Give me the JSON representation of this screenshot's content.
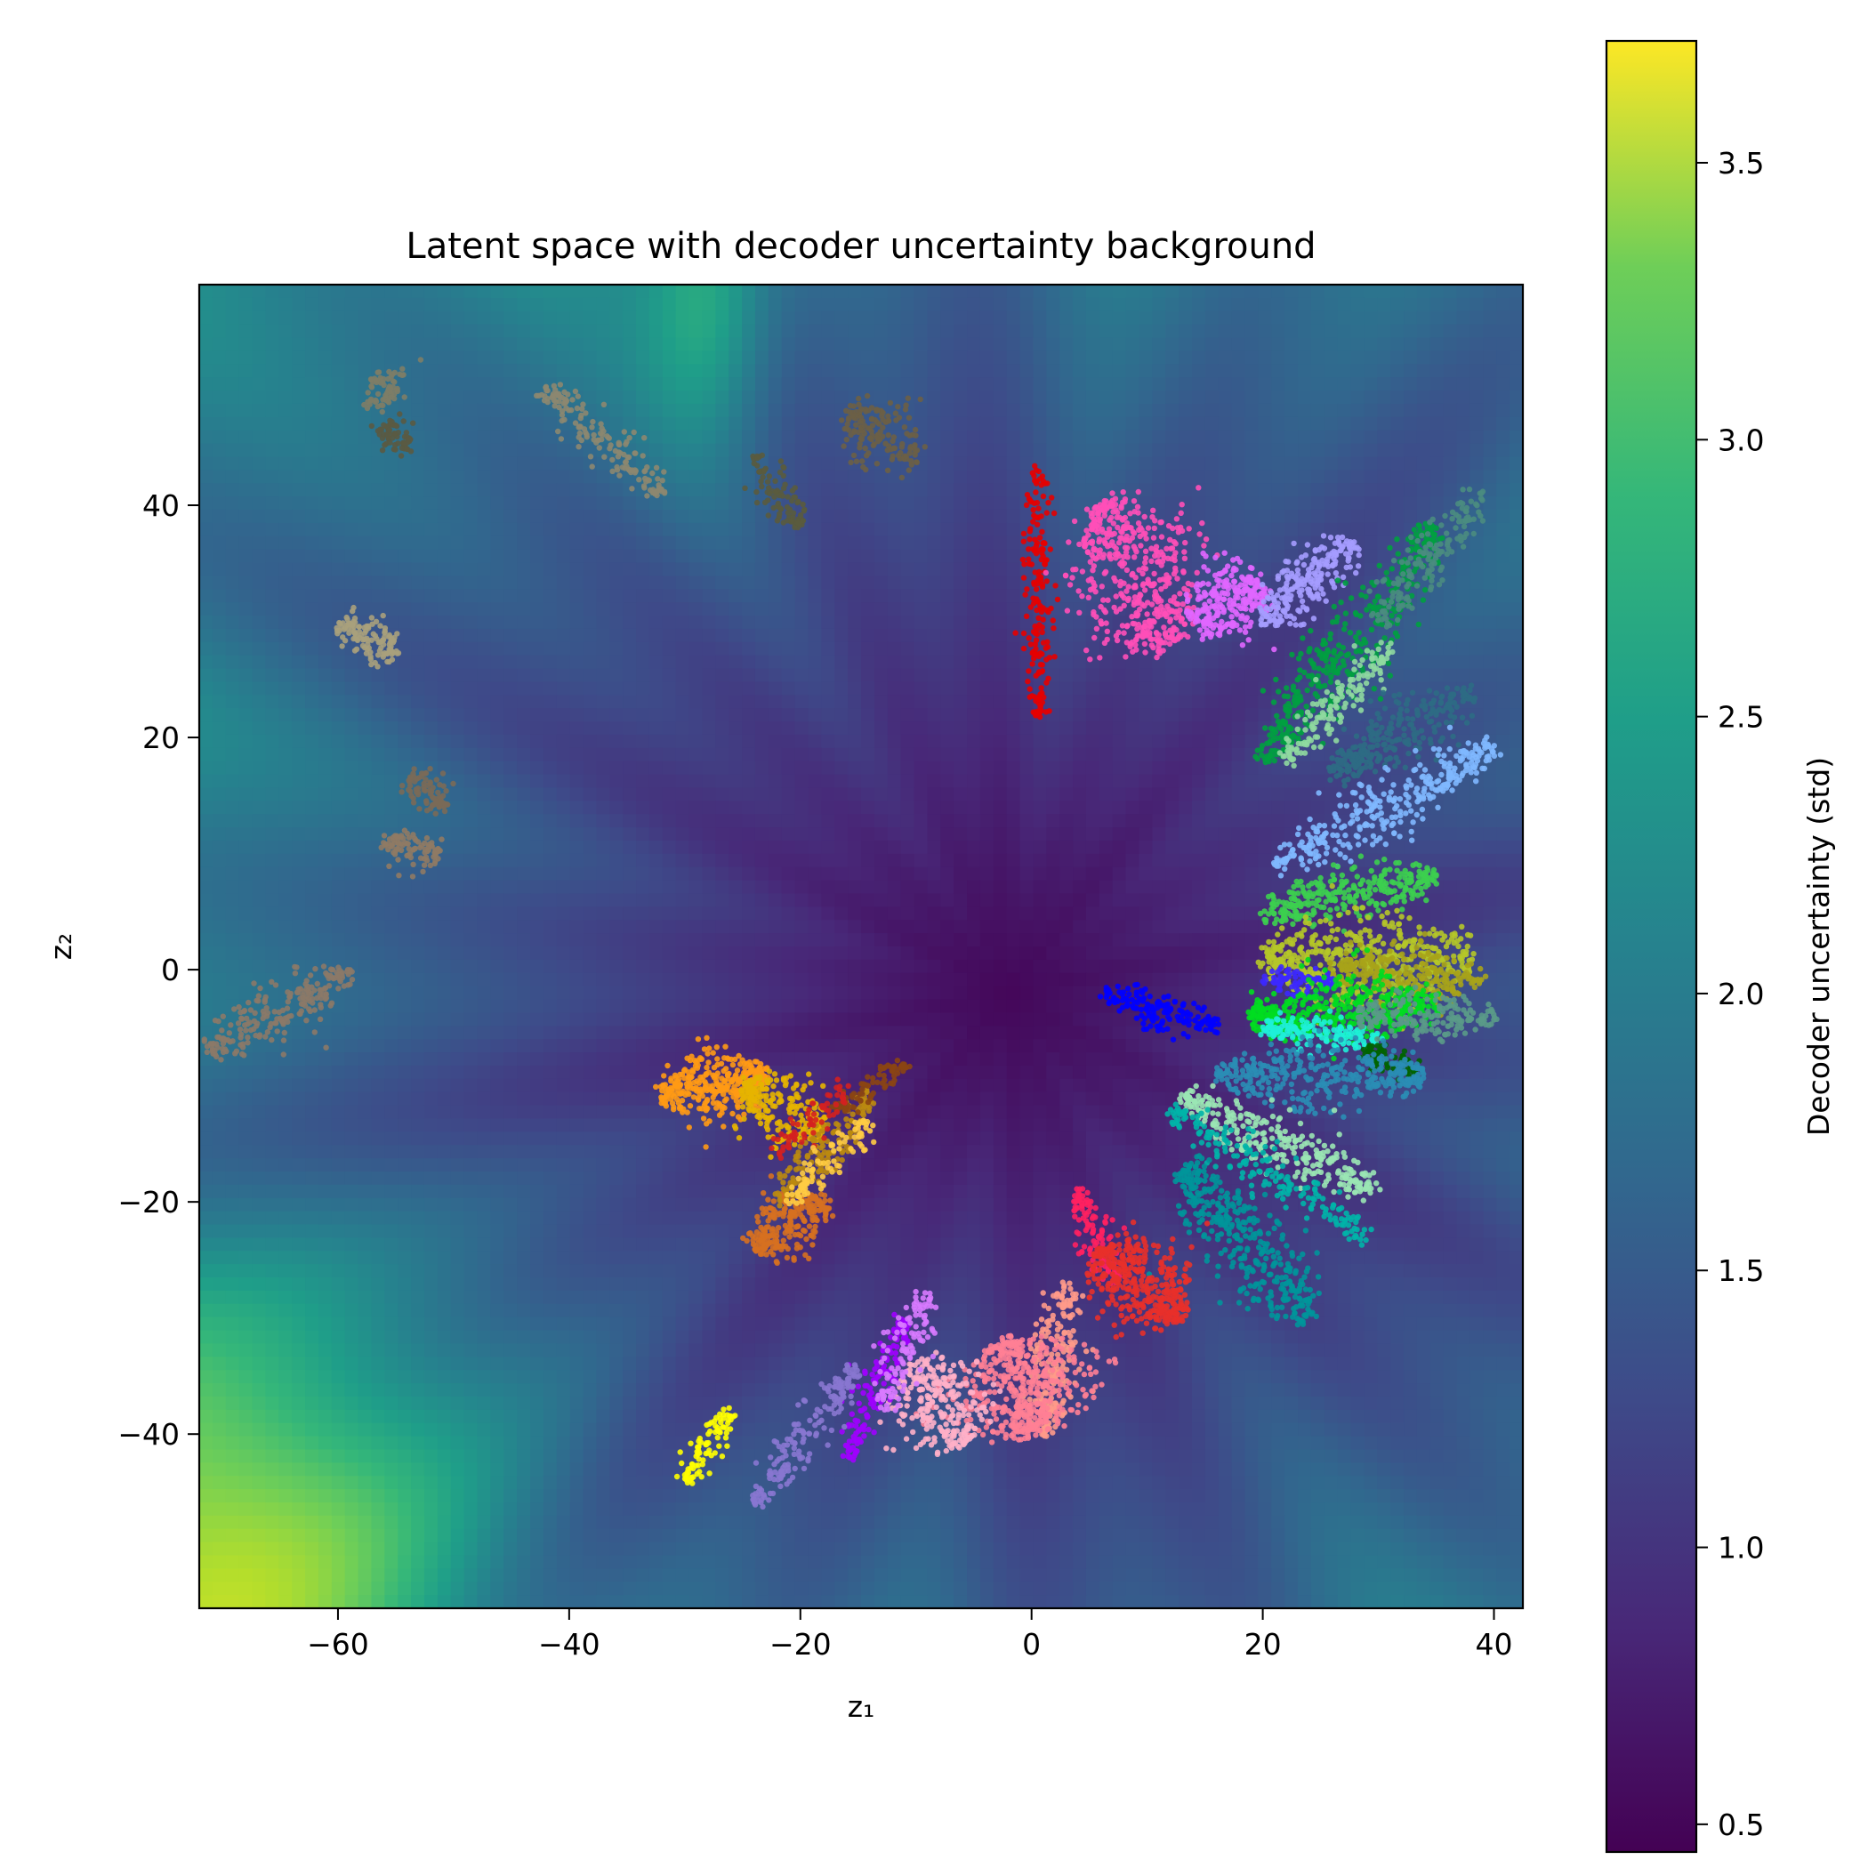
{
  "chart_data": {
    "type": "scatter",
    "title": "Latent space with decoder uncertainty background",
    "xlabel": "z₁",
    "ylabel": "z₂",
    "xlim": [
      -72,
      42.5
    ],
    "ylim": [
      -55,
      59
    ],
    "x_ticks": [
      -60,
      -40,
      -20,
      0,
      20,
      40
    ],
    "y_ticks": [
      -40,
      -20,
      0,
      20,
      40
    ],
    "x_tick_labels": [
      "−60",
      "−40",
      "−20",
      "0",
      "20",
      "40"
    ],
    "y_tick_labels": [
      "−40",
      "−20",
      "0",
      "20",
      "40"
    ],
    "grid": false,
    "legend": "none",
    "background": {
      "type": "heatmap",
      "colormap": "viridis",
      "description_of_pattern": "radial spokes of low uncertainty near origin, increasing outward",
      "center": [
        -2,
        -2
      ],
      "value_range": [
        0.45,
        3.72
      ]
    },
    "colorbar": {
      "label": "Decoder uncertainty (std)",
      "min": 0.45,
      "max": 3.72,
      "ticks": [
        0.5,
        1.0,
        1.5,
        2.0,
        2.5,
        3.0,
        3.5
      ],
      "tick_labels": [
        "0.5",
        "1.0",
        "1.5",
        "2.0",
        "2.5",
        "3.0",
        "3.5"
      ]
    },
    "clusters": [
      {
        "color": "#8b7968",
        "from": [
          -71,
          -7
        ],
        "to": [
          -59,
          0
        ],
        "width": 1.2,
        "n": 220
      },
      {
        "color": "#8f7a64",
        "from": [
          -56,
          11
        ],
        "to": [
          -51,
          10
        ],
        "width": 0.8,
        "n": 90
      },
      {
        "color": "#7a6a58",
        "from": [
          -54,
          17
        ],
        "to": [
          -51,
          14
        ],
        "width": 0.9,
        "n": 80
      },
      {
        "color": "#a9a07c",
        "from": [
          -60,
          30
        ],
        "to": [
          -55,
          27
        ],
        "width": 1.0,
        "n": 120
      },
      {
        "color": "#7d7d67",
        "from": [
          -57,
          51
        ],
        "to": [
          -55,
          49
        ],
        "width": 1.0,
        "n": 70
      },
      {
        "color": "#5a5a42",
        "from": [
          -56,
          47
        ],
        "to": [
          -54,
          45
        ],
        "width": 0.8,
        "n": 60
      },
      {
        "color": "#8c8770",
        "from": [
          -42,
          50
        ],
        "to": [
          -32,
          41
        ],
        "width": 0.9,
        "n": 160
      },
      {
        "color": "#5a5b3e",
        "from": [
          -24,
          44
        ],
        "to": [
          -20,
          38
        ],
        "width": 0.8,
        "n": 90
      },
      {
        "color": "#6b5f46",
        "from": [
          -16,
          48
        ],
        "to": [
          -10,
          44
        ],
        "width": 1.5,
        "n": 150
      },
      {
        "color": "#e60000",
        "from": [
          0.5,
          43
        ],
        "to": [
          0.5,
          22
        ],
        "width": 0.7,
        "n": 180
      },
      {
        "color": "#ff4fb8",
        "from": [
          6,
          40
        ],
        "to": [
          12,
          28
        ],
        "width": 3.0,
        "n": 500
      },
      {
        "color": "#e066ff",
        "from": [
          14,
          30
        ],
        "to": [
          20,
          33
        ],
        "width": 1.8,
        "n": 250
      },
      {
        "color": "#a59cff",
        "from": [
          20,
          30
        ],
        "to": [
          28,
          37
        ],
        "width": 1.2,
        "n": 220
      },
      {
        "color": "#00a040",
        "from": [
          20,
          18
        ],
        "to": [
          35,
          38
        ],
        "width": 1.6,
        "n": 380
      },
      {
        "color": "#8fd9a0",
        "from": [
          22,
          18
        ],
        "to": [
          31,
          28
        ],
        "width": 0.9,
        "n": 150
      },
      {
        "color": "#4a8c80",
        "from": [
          30,
          30
        ],
        "to": [
          39,
          41
        ],
        "width": 1.0,
        "n": 160
      },
      {
        "color": "#2d6c84",
        "from": [
          26,
          17
        ],
        "to": [
          38,
          24
        ],
        "width": 1.3,
        "n": 260
      },
      {
        "color": "#7fb8ff",
        "from": [
          21,
          9
        ],
        "to": [
          40,
          19
        ],
        "width": 1.3,
        "n": 320
      },
      {
        "color": "#3ccf4f",
        "from": [
          20,
          5
        ],
        "to": [
          35,
          8
        ],
        "width": 1.1,
        "n": 300
      },
      {
        "color": "#b5c728",
        "from": [
          20,
          1
        ],
        "to": [
          38,
          1
        ],
        "width": 2.0,
        "n": 450
      },
      {
        "color": "#a7a31a",
        "from": [
          26,
          0
        ],
        "to": [
          39,
          -1
        ],
        "width": 1.2,
        "n": 250
      },
      {
        "color": "#3c28ff",
        "from": [
          20,
          -1
        ],
        "to": [
          26,
          -1
        ],
        "width": 0.6,
        "n": 80
      },
      {
        "color": "#00dd20",
        "from": [
          19,
          -4
        ],
        "to": [
          35,
          -3
        ],
        "width": 1.5,
        "n": 400
      },
      {
        "color": "#1ef0d8",
        "from": [
          20,
          -5
        ],
        "to": [
          30,
          -6
        ],
        "width": 0.7,
        "n": 160
      },
      {
        "color": "#5a9a88",
        "from": [
          28,
          -4
        ],
        "to": [
          40,
          -4
        ],
        "width": 1.0,
        "n": 180
      },
      {
        "color": "#006400",
        "from": [
          29,
          -7
        ],
        "to": [
          33,
          -9
        ],
        "width": 0.6,
        "n": 80
      },
      {
        "color": "#0000ff",
        "from": [
          6,
          -2
        ],
        "to": [
          16,
          -5
        ],
        "width": 0.7,
        "n": 160
      },
      {
        "color": "#2a8db5",
        "from": [
          16,
          -9
        ],
        "to": [
          34,
          -9
        ],
        "width": 1.4,
        "n": 360
      },
      {
        "color": "#9ae6b4",
        "from": [
          13,
          -11
        ],
        "to": [
          30,
          -19
        ],
        "width": 1.2,
        "n": 300
      },
      {
        "color": "#00b4a8",
        "from": [
          12,
          -12
        ],
        "to": [
          29,
          -23
        ],
        "width": 0.8,
        "n": 200
      },
      {
        "color": "#00959a",
        "from": [
          13,
          -17
        ],
        "to": [
          24,
          -30
        ],
        "width": 1.8,
        "n": 380
      },
      {
        "color": "#ff2060",
        "from": [
          4,
          -19
        ],
        "to": [
          7,
          -27
        ],
        "width": 0.8,
        "n": 120
      },
      {
        "color": "#e8302a",
        "from": [
          6,
          -24
        ],
        "to": [
          13,
          -30
        ],
        "width": 2.0,
        "n": 380
      },
      {
        "color": "#ff9a8a",
        "from": [
          1,
          -40
        ],
        "to": [
          3,
          -27
        ],
        "width": 1.2,
        "n": 200
      },
      {
        "color": "#ff7f95",
        "from": [
          -2,
          -32
        ],
        "to": [
          0,
          -40
        ],
        "width": 3.0,
        "n": 450
      },
      {
        "color": "#ffb0c8",
        "from": [
          -10,
          -34
        ],
        "to": [
          -6,
          -41
        ],
        "width": 2.0,
        "n": 250
      },
      {
        "color": "#a000ff",
        "from": [
          -16,
          -42
        ],
        "to": [
          -11,
          -30
        ],
        "width": 0.8,
        "n": 140
      },
      {
        "color": "#d87aff",
        "from": [
          -13,
          -38
        ],
        "to": [
          -9,
          -28
        ],
        "width": 0.9,
        "n": 120
      },
      {
        "color": "#8877d0",
        "from": [
          -24,
          -46
        ],
        "to": [
          -15,
          -34
        ],
        "width": 0.9,
        "n": 170
      },
      {
        "color": "#ffff00",
        "from": [
          -30,
          -44
        ],
        "to": [
          -26,
          -38
        ],
        "width": 0.6,
        "n": 90
      },
      {
        "color": "#ff9a14",
        "from": [
          -32,
          -11
        ],
        "to": [
          -23,
          -9
        ],
        "width": 1.4,
        "n": 320
      },
      {
        "color": "#e6b400",
        "from": [
          -25,
          -10
        ],
        "to": [
          -18,
          -14
        ],
        "width": 1.6,
        "n": 220
      },
      {
        "color": "#d67020",
        "from": [
          -24,
          -24
        ],
        "to": [
          -18,
          -20
        ],
        "width": 1.3,
        "n": 240
      },
      {
        "color": "#bb8a10",
        "from": [
          -22,
          -20
        ],
        "to": [
          -14,
          -11
        ],
        "width": 0.9,
        "n": 140
      },
      {
        "color": "#8b4513",
        "from": [
          -17,
          -12
        ],
        "to": [
          -11,
          -8
        ],
        "width": 0.6,
        "n": 80
      },
      {
        "color": "#d42020",
        "from": [
          -22,
          -16
        ],
        "to": [
          -16,
          -10
        ],
        "width": 0.6,
        "n": 70
      },
      {
        "color": "#ffcc44",
        "from": [
          -21,
          -20
        ],
        "to": [
          -14,
          -13
        ],
        "width": 0.8,
        "n": 90
      }
    ]
  }
}
